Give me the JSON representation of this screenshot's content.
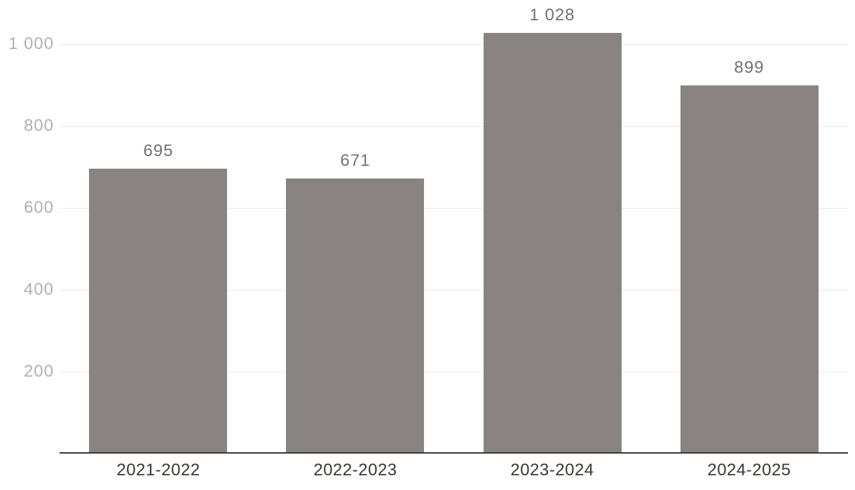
{
  "chart_data": {
    "type": "bar",
    "title": "",
    "xlabel": "",
    "ylabel": "",
    "categories": [
      "2021-2022",
      "2022-2023",
      "2023-2024",
      "2024-2025"
    ],
    "values": [
      695,
      671,
      1028,
      899
    ],
    "value_labels": [
      "695",
      "671",
      "1 028",
      "899"
    ],
    "yticks": [
      200,
      400,
      600,
      800,
      1000
    ],
    "ytick_labels": [
      "200",
      "400",
      "600",
      "800",
      "1 000"
    ],
    "ylim": [
      0,
      1107
    ],
    "grid": true,
    "legend": false,
    "colors": {
      "bar": "#898481",
      "gridline": "#e9e8e6",
      "axis_line": "#3b3834",
      "x_tick_label": "#3b3834",
      "y_tick_label": "#b3b1ae",
      "value_label": "#74706e",
      "background": "#ffffff"
    }
  }
}
